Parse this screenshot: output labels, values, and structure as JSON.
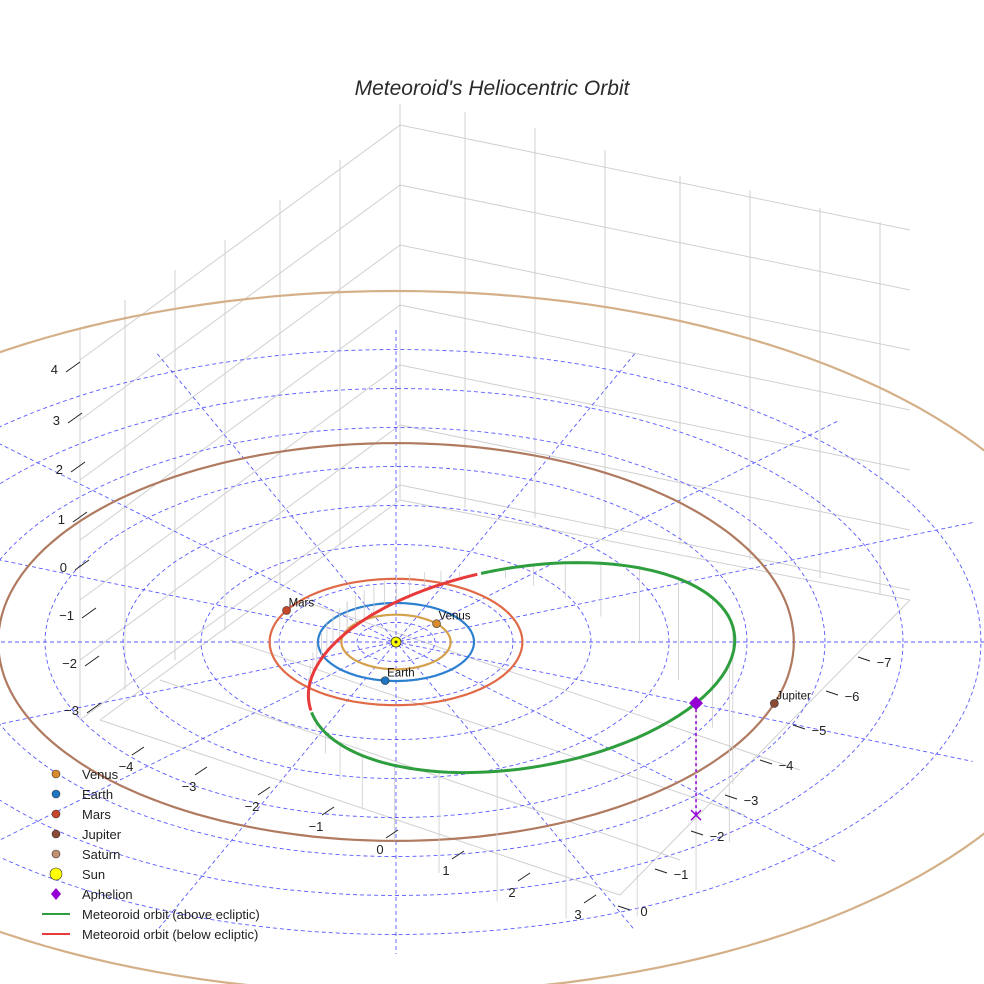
{
  "chart_data": {
    "type": "scatter3d",
    "title": "Meteoroid's Heliocentric Orbit",
    "planets": [
      {
        "name": "Venus",
        "color": "#d88a2c",
        "orbit_color": "#d4a04a",
        "a": 0.723,
        "angle_deg": 42
      },
      {
        "name": "Earth",
        "color": "#1f77c4",
        "orbit_color": "#2d7fd0",
        "a": 1.0,
        "angle_deg": 262
      },
      {
        "name": "Mars",
        "color": "#c8462a",
        "orbit_color": "#e06a48",
        "a": 1.524,
        "angle_deg": 150
      },
      {
        "name": "Jupiter",
        "color": "#8b4a36",
        "orbit_color": "#b07a60",
        "a": 5.203,
        "angle_deg": 342
      },
      {
        "name": "Saturn",
        "color": "#c09070",
        "orbit_color": "#d4b088",
        "a": 9.54,
        "angle_deg": 0
      }
    ],
    "point_labels": [
      "Venus",
      "Earth",
      "Mars",
      "Jupiter"
    ],
    "sun": {
      "name": "Sun",
      "color": "#ffff00"
    },
    "aphelion": {
      "name": "Aphelion",
      "color": "#9400d3",
      "z_above_ecliptic": 3.2
    },
    "meteoroid": {
      "above_name": "Meteoroid orbit (above ecliptic)",
      "above_color": "#2e9e3e",
      "below_name": "Meteoroid orbit (below ecliptic)",
      "below_color": "#e83a3a",
      "perihelion_q_au": 0.98,
      "aphelion_Q_au": 4.4
    },
    "axes": {
      "x_ticks": [
        "−4",
        "−3",
        "−2",
        "−1",
        "0",
        "1",
        "2",
        "3"
      ],
      "y_ticks": [
        "0",
        "−1",
        "−2",
        "−3",
        "−4",
        "−5",
        "−6",
        "−7"
      ],
      "z_ticks": [
        "4",
        "3",
        "2",
        "1",
        "0",
        "−1",
        "−2",
        "−3"
      ],
      "grid": true
    },
    "legend": {
      "placement": "bottom-left"
    }
  }
}
